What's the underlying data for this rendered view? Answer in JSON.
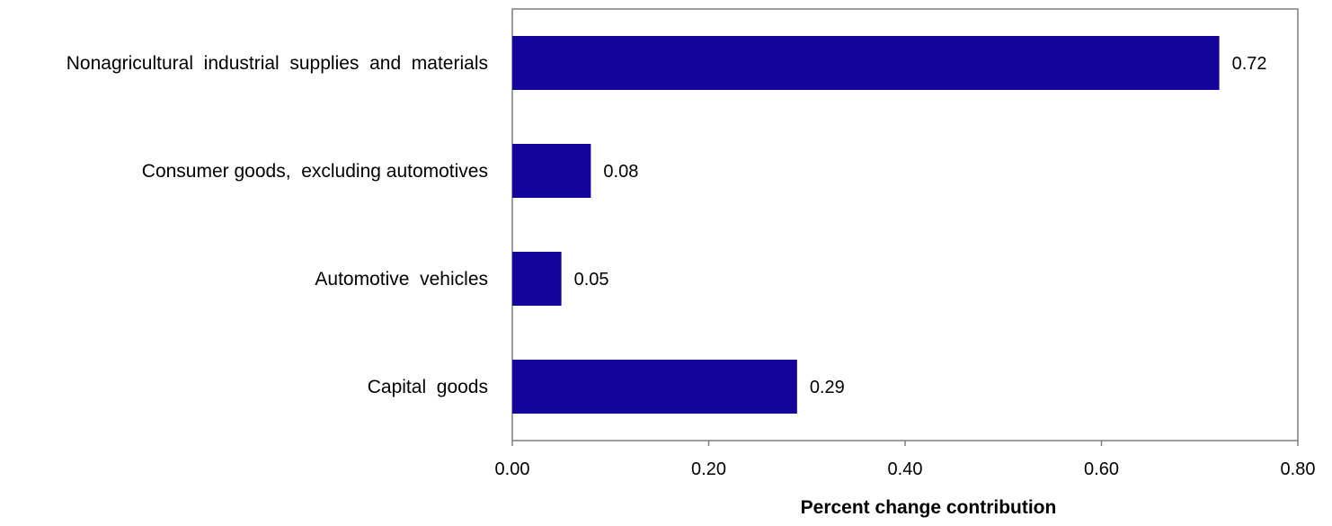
{
  "chart_data": {
    "type": "bar",
    "orientation": "horizontal",
    "categories": [
      "Nonagricultural  industrial  supplies  and  materials",
      "Consumer goods,  excluding automotives",
      "Automotive  vehicles",
      "Capital  goods"
    ],
    "values": [
      0.72,
      0.08,
      0.05,
      0.29
    ],
    "data_labels": [
      "0.72",
      "0.08",
      "0.05",
      "0.29"
    ],
    "xlabel": "Percent change contribution",
    "ylabel": "",
    "title": "",
    "xlim": [
      0,
      0.8
    ],
    "x_ticks": [
      0.0,
      0.2,
      0.4,
      0.6,
      0.8
    ],
    "x_tick_labels": [
      "0.00",
      "0.20",
      "0.40",
      "0.60",
      "0.80"
    ],
    "bar_color": "#13059C",
    "axis_color": "#7F7F7F",
    "grid": false,
    "legend": "none"
  }
}
